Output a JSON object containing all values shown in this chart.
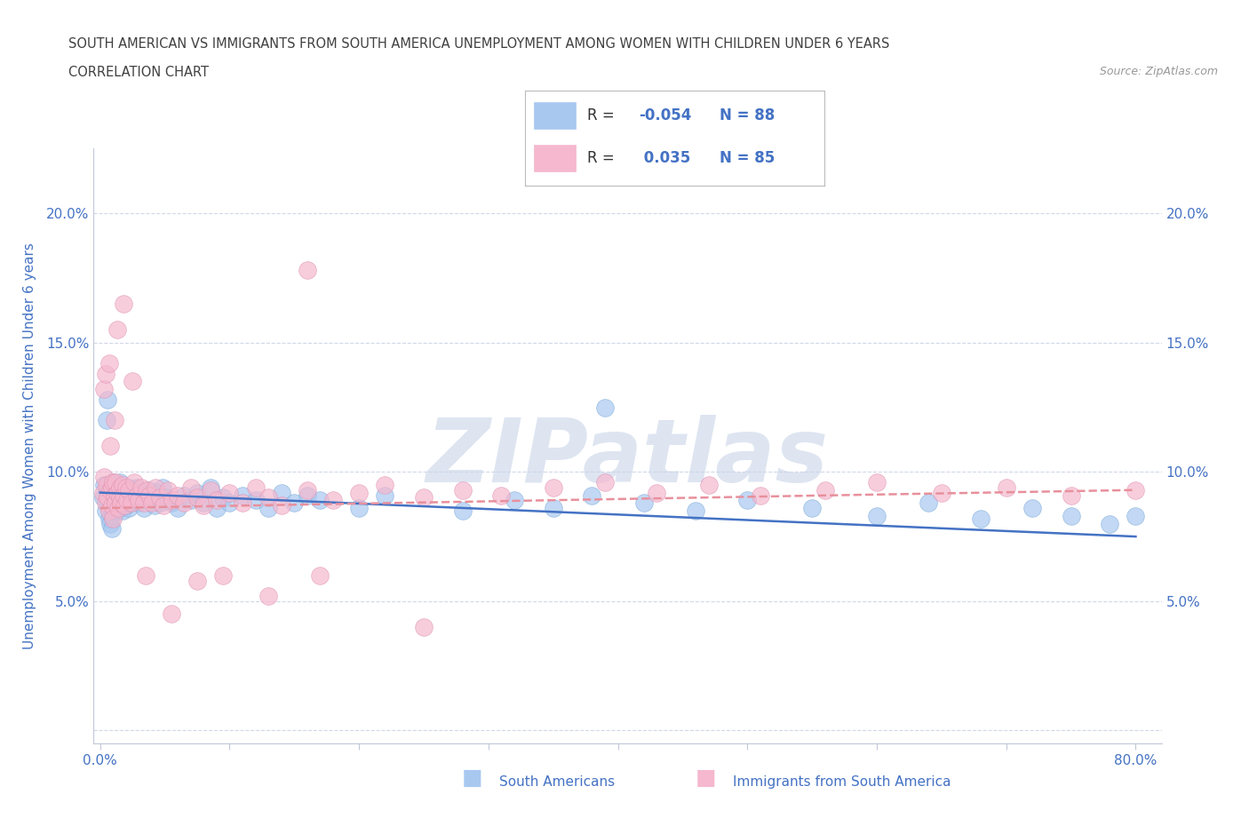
{
  "title_line1": "SOUTH AMERICAN VS IMMIGRANTS FROM SOUTH AMERICA UNEMPLOYMENT AMONG WOMEN WITH CHILDREN UNDER 6 YEARS",
  "title_line2": "CORRELATION CHART",
  "source_text": "Source: ZipAtlas.com",
  "ylabel": "Unemployment Among Women with Children Under 6 years",
  "xlim": [
    -0.005,
    0.82
  ],
  "ylim": [
    -0.005,
    0.225
  ],
  "xticks": [
    0.0,
    0.1,
    0.2,
    0.3,
    0.4,
    0.5,
    0.6,
    0.7,
    0.8
  ],
  "xticklabels": [
    "0.0%",
    "",
    "",
    "",
    "",
    "",
    "",
    "",
    "80.0%"
  ],
  "yticks": [
    0.0,
    0.05,
    0.1,
    0.15,
    0.2
  ],
  "yticklabels": [
    "",
    "5.0%",
    "10.0%",
    "15.0%",
    "20.0%"
  ],
  "right_yticks": [
    0.05,
    0.1,
    0.15,
    0.2
  ],
  "right_yticklabels": [
    "5.0%",
    "10.0%",
    "15.0%",
    "20.0%"
  ],
  "blue_color": "#A8C8F0",
  "pink_color": "#F5B8CE",
  "blue_edge_color": "#7BAAD8",
  "pink_edge_color": "#E090B0",
  "blue_line_color": "#4472C4",
  "pink_line_color": "#E8909C",
  "grid_color": "#D0D8E8",
  "axis_color": "#C0C8D8",
  "tick_label_color": "#4472C4",
  "title_color": "#404040",
  "legend_R_color": "#4472C4",
  "watermark_text": "ZIPatlas",
  "watermark_color": "#C8D4E8",
  "watermark_fontsize": 72,
  "legend_label_blue": "South Americans",
  "legend_label_pink": "Immigrants from South America",
  "blue_line_y0": 0.092,
  "blue_line_y1": 0.075,
  "pink_line_y0": 0.086,
  "pink_line_y1": 0.093,
  "blue_scatter_x": [
    0.002,
    0.003,
    0.004,
    0.005,
    0.006,
    0.007,
    0.007,
    0.008,
    0.008,
    0.009,
    0.009,
    0.009,
    0.01,
    0.01,
    0.01,
    0.011,
    0.011,
    0.012,
    0.012,
    0.013,
    0.013,
    0.014,
    0.014,
    0.015,
    0.015,
    0.016,
    0.016,
    0.017,
    0.017,
    0.018,
    0.019,
    0.02,
    0.021,
    0.022,
    0.022,
    0.023,
    0.024,
    0.025,
    0.027,
    0.028,
    0.03,
    0.032,
    0.034,
    0.036,
    0.038,
    0.04,
    0.042,
    0.044,
    0.046,
    0.048,
    0.05,
    0.055,
    0.06,
    0.065,
    0.07,
    0.075,
    0.08,
    0.085,
    0.09,
    0.095,
    0.1,
    0.11,
    0.12,
    0.13,
    0.14,
    0.15,
    0.16,
    0.17,
    0.2,
    0.22,
    0.28,
    0.32,
    0.35,
    0.38,
    0.42,
    0.46,
    0.5,
    0.55,
    0.6,
    0.64,
    0.68,
    0.72,
    0.75,
    0.78,
    0.8,
    0.005,
    0.006,
    0.39
  ],
  "blue_scatter_y": [
    0.09,
    0.095,
    0.085,
    0.092,
    0.088,
    0.082,
    0.095,
    0.08,
    0.091,
    0.085,
    0.093,
    0.078,
    0.096,
    0.089,
    0.083,
    0.092,
    0.086,
    0.094,
    0.088,
    0.091,
    0.085,
    0.093,
    0.087,
    0.096,
    0.09,
    0.088,
    0.094,
    0.085,
    0.092,
    0.089,
    0.093,
    0.087,
    0.091,
    0.086,
    0.094,
    0.088,
    0.092,
    0.09,
    0.089,
    0.094,
    0.088,
    0.092,
    0.086,
    0.091,
    0.093,
    0.089,
    0.087,
    0.092,
    0.088,
    0.094,
    0.09,
    0.088,
    0.086,
    0.091,
    0.089,
    0.092,
    0.088,
    0.094,
    0.086,
    0.09,
    0.088,
    0.091,
    0.089,
    0.086,
    0.092,
    0.088,
    0.091,
    0.089,
    0.086,
    0.091,
    0.085,
    0.089,
    0.086,
    0.091,
    0.088,
    0.085,
    0.089,
    0.086,
    0.083,
    0.088,
    0.082,
    0.086,
    0.083,
    0.08,
    0.083,
    0.12,
    0.128,
    0.125
  ],
  "pink_scatter_x": [
    0.002,
    0.003,
    0.004,
    0.005,
    0.006,
    0.007,
    0.008,
    0.009,
    0.009,
    0.01,
    0.01,
    0.011,
    0.012,
    0.012,
    0.013,
    0.014,
    0.015,
    0.015,
    0.016,
    0.017,
    0.018,
    0.019,
    0.02,
    0.021,
    0.022,
    0.024,
    0.026,
    0.028,
    0.03,
    0.032,
    0.034,
    0.036,
    0.038,
    0.04,
    0.043,
    0.046,
    0.049,
    0.052,
    0.056,
    0.06,
    0.065,
    0.07,
    0.075,
    0.08,
    0.085,
    0.09,
    0.1,
    0.11,
    0.12,
    0.13,
    0.14,
    0.16,
    0.18,
    0.2,
    0.22,
    0.25,
    0.28,
    0.31,
    0.35,
    0.39,
    0.43,
    0.47,
    0.51,
    0.56,
    0.6,
    0.65,
    0.7,
    0.75,
    0.8,
    0.003,
    0.004,
    0.007,
    0.008,
    0.011,
    0.013,
    0.018,
    0.025,
    0.035,
    0.055,
    0.075,
    0.095,
    0.13,
    0.17,
    0.25,
    0.16
  ],
  "pink_scatter_y": [
    0.092,
    0.098,
    0.088,
    0.095,
    0.09,
    0.085,
    0.093,
    0.087,
    0.094,
    0.082,
    0.096,
    0.091,
    0.088,
    0.096,
    0.092,
    0.086,
    0.094,
    0.09,
    0.088,
    0.095,
    0.091,
    0.087,
    0.094,
    0.089,
    0.093,
    0.088,
    0.096,
    0.091,
    0.089,
    0.094,
    0.088,
    0.093,
    0.091,
    0.088,
    0.094,
    0.09,
    0.087,
    0.093,
    0.089,
    0.091,
    0.088,
    0.094,
    0.09,
    0.087,
    0.093,
    0.089,
    0.092,
    0.088,
    0.094,
    0.09,
    0.087,
    0.093,
    0.089,
    0.092,
    0.095,
    0.09,
    0.093,
    0.091,
    0.094,
    0.096,
    0.092,
    0.095,
    0.091,
    0.093,
    0.096,
    0.092,
    0.094,
    0.091,
    0.093,
    0.132,
    0.138,
    0.142,
    0.11,
    0.12,
    0.155,
    0.165,
    0.135,
    0.06,
    0.045,
    0.058,
    0.06,
    0.052,
    0.06,
    0.04,
    0.178
  ]
}
